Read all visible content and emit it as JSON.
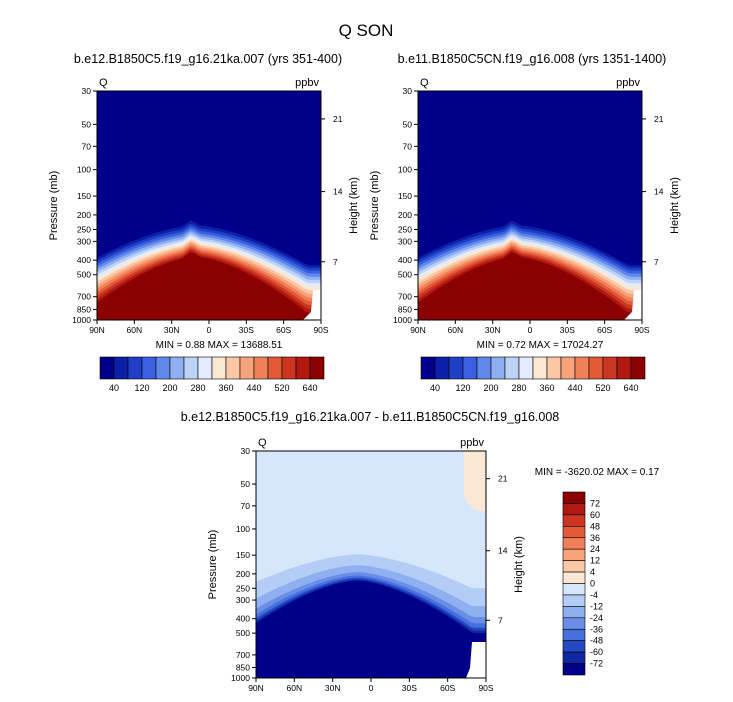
{
  "figure": {
    "title": "Q SON"
  },
  "chart_data": [
    {
      "type": "heatmap",
      "id": "left",
      "title": "b.e12.B1850C5.f19_g16.21ka.007 (yrs 351-400)",
      "field_label": "Q",
      "units": "ppbv",
      "ylabel": "Pressure (mb)",
      "ylabel_right": "Height (km)",
      "x_ticks": [
        "90N",
        "60N",
        "30N",
        "0",
        "30S",
        "60S",
        "90S"
      ],
      "y_ticks": [
        "30",
        "50",
        "70",
        "100",
        "150",
        "200",
        "250",
        "300",
        "400",
        "500",
        "700",
        "850",
        "1000"
      ],
      "y_ticks_right": [
        "21",
        "14",
        "7"
      ],
      "min_max_text": "MIN =   0.88  MAX = 13688.51",
      "colorbar_ticks": [
        "40",
        "120",
        "200",
        "280",
        "360",
        "440",
        "520",
        "640"
      ],
      "colorbar_colors": [
        "#00008b",
        "#0b1fa8",
        "#1f3fc6",
        "#3a60e0",
        "#6088ea",
        "#8eb0f2",
        "#bcd2f7",
        "#e3ecfb",
        "#fbe7d3",
        "#fbc7a5",
        "#f7a47c",
        "#f08058",
        "#e25a38",
        "#cc3520",
        "#b01810",
        "#8b0000"
      ],
      "profile_description": "Dark blue above a dome-shaped tropopause; red (>640 ppbv) in the lower troposphere peaking near 10N at ~400 mb, missing data near 90S surface"
    },
    {
      "type": "heatmap",
      "id": "right",
      "title": "b.e11.B1850C5CN.f19_g16.008 (yrs 1351-1400)",
      "field_label": "Q",
      "units": "ppbv",
      "ylabel": "Pressure (mb)",
      "ylabel_right": "Height (km)",
      "x_ticks": [
        "90N",
        "60N",
        "30N",
        "0",
        "30S",
        "60S",
        "90S"
      ],
      "y_ticks": [
        "30",
        "50",
        "70",
        "100",
        "150",
        "200",
        "250",
        "300",
        "400",
        "500",
        "700",
        "850",
        "1000"
      ],
      "y_ticks_right": [
        "21",
        "14",
        "7"
      ],
      "min_max_text": "MIN =   0.72  MAX = 17024.27",
      "colorbar_ticks": [
        "40",
        "120",
        "200",
        "280",
        "360",
        "440",
        "520",
        "640"
      ],
      "colorbar_colors": [
        "#00008b",
        "#0b1fa8",
        "#1f3fc6",
        "#3a60e0",
        "#6088ea",
        "#8eb0f2",
        "#bcd2f7",
        "#e3ecfb",
        "#fbe7d3",
        "#fbc7a5",
        "#f7a47c",
        "#f08058",
        "#e25a38",
        "#cc3520",
        "#b01810",
        "#8b0000"
      ]
    },
    {
      "type": "heatmap",
      "id": "diff",
      "title": "b.e12.B1850C5.f19_g16.21ka.007 - b.e11.B1850C5CN.f19_g16.008",
      "field_label": "Q",
      "units": "ppbv",
      "ylabel": "Pressure (mb)",
      "ylabel_right": "Height (km)",
      "x_ticks": [
        "90N",
        "60N",
        "30N",
        "0",
        "30S",
        "60S",
        "90S"
      ],
      "y_ticks": [
        "30",
        "50",
        "70",
        "100",
        "150",
        "200",
        "250",
        "300",
        "400",
        "500",
        "700",
        "850",
        "1000"
      ],
      "y_ticks_right": [
        "21",
        "14",
        "7"
      ],
      "min_max_text": "MIN = -3620.02  MAX =   0.17",
      "colorbar_ticks": [
        "72",
        "60",
        "48",
        "36",
        "24",
        "12",
        "4",
        "0",
        "-4",
        "-12",
        "-24",
        "-36",
        "-48",
        "-60",
        "-72"
      ],
      "colorbar_colors": [
        "#8b0000",
        "#b01810",
        "#cc3520",
        "#e25a38",
        "#f08058",
        "#f7a47c",
        "#fbc7a5",
        "#fbe7d3",
        "#d6e6fb",
        "#b4cdf6",
        "#8eaff0",
        "#6a8ee8",
        "#4670dd",
        "#2548c4",
        "#1026a4",
        "#00008b"
      ]
    }
  ]
}
